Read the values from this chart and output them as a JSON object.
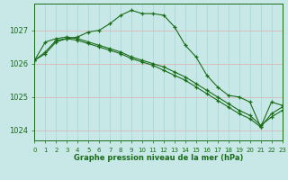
{
  "title": "Graphe pression niveau de la mer (hPa)",
  "background_color": "#c8e8e8",
  "grid_color": "#b0d8d8",
  "line_color": "#1a6b1a",
  "xlim": [
    0,
    23
  ],
  "ylim": [
    1023.7,
    1027.8
  ],
  "yticks": [
    1024,
    1025,
    1026,
    1027
  ],
  "xticks": [
    0,
    1,
    2,
    3,
    4,
    5,
    6,
    7,
    8,
    9,
    10,
    11,
    12,
    13,
    14,
    15,
    16,
    17,
    18,
    19,
    20,
    21,
    22,
    23
  ],
  "line1_x": [
    0,
    1,
    2,
    3,
    4,
    5,
    6,
    7,
    8,
    9,
    10,
    11,
    12,
    13,
    14,
    15,
    16,
    17,
    18,
    19,
    20,
    21,
    22,
    23
  ],
  "line1_y": [
    1026.1,
    1026.35,
    1026.7,
    1026.75,
    1026.8,
    1026.95,
    1027.0,
    1027.2,
    1027.45,
    1027.6,
    1027.5,
    1027.5,
    1027.45,
    1027.1,
    1026.55,
    1026.2,
    1025.65,
    1025.3,
    1025.05,
    1025.0,
    1024.85,
    1024.1,
    1024.85,
    1024.75
  ],
  "line2_x": [
    0,
    1,
    2,
    3,
    4,
    5,
    6,
    7,
    8,
    9,
    10,
    11,
    12,
    13,
    14,
    15,
    16,
    17,
    18,
    19,
    20,
    21,
    22,
    23
  ],
  "line2_y": [
    1026.1,
    1026.65,
    1026.75,
    1026.8,
    1026.75,
    1026.65,
    1026.55,
    1026.45,
    1026.35,
    1026.2,
    1026.1,
    1026.0,
    1025.9,
    1025.75,
    1025.6,
    1025.4,
    1025.2,
    1025.0,
    1024.8,
    1024.6,
    1024.45,
    1024.15,
    1024.4,
    1024.6
  ],
  "line3_x": [
    0,
    1,
    2,
    3,
    4,
    5,
    6,
    7,
    8,
    9,
    10,
    11,
    12,
    13,
    14,
    15,
    16,
    17,
    18,
    19,
    20,
    21,
    22,
    23
  ],
  "line3_y": [
    1026.1,
    1026.3,
    1026.65,
    1026.75,
    1026.7,
    1026.6,
    1026.5,
    1026.4,
    1026.3,
    1026.15,
    1026.05,
    1025.95,
    1025.8,
    1025.65,
    1025.5,
    1025.3,
    1025.1,
    1024.9,
    1024.7,
    1024.5,
    1024.35,
    1024.1,
    1024.5,
    1024.7
  ]
}
